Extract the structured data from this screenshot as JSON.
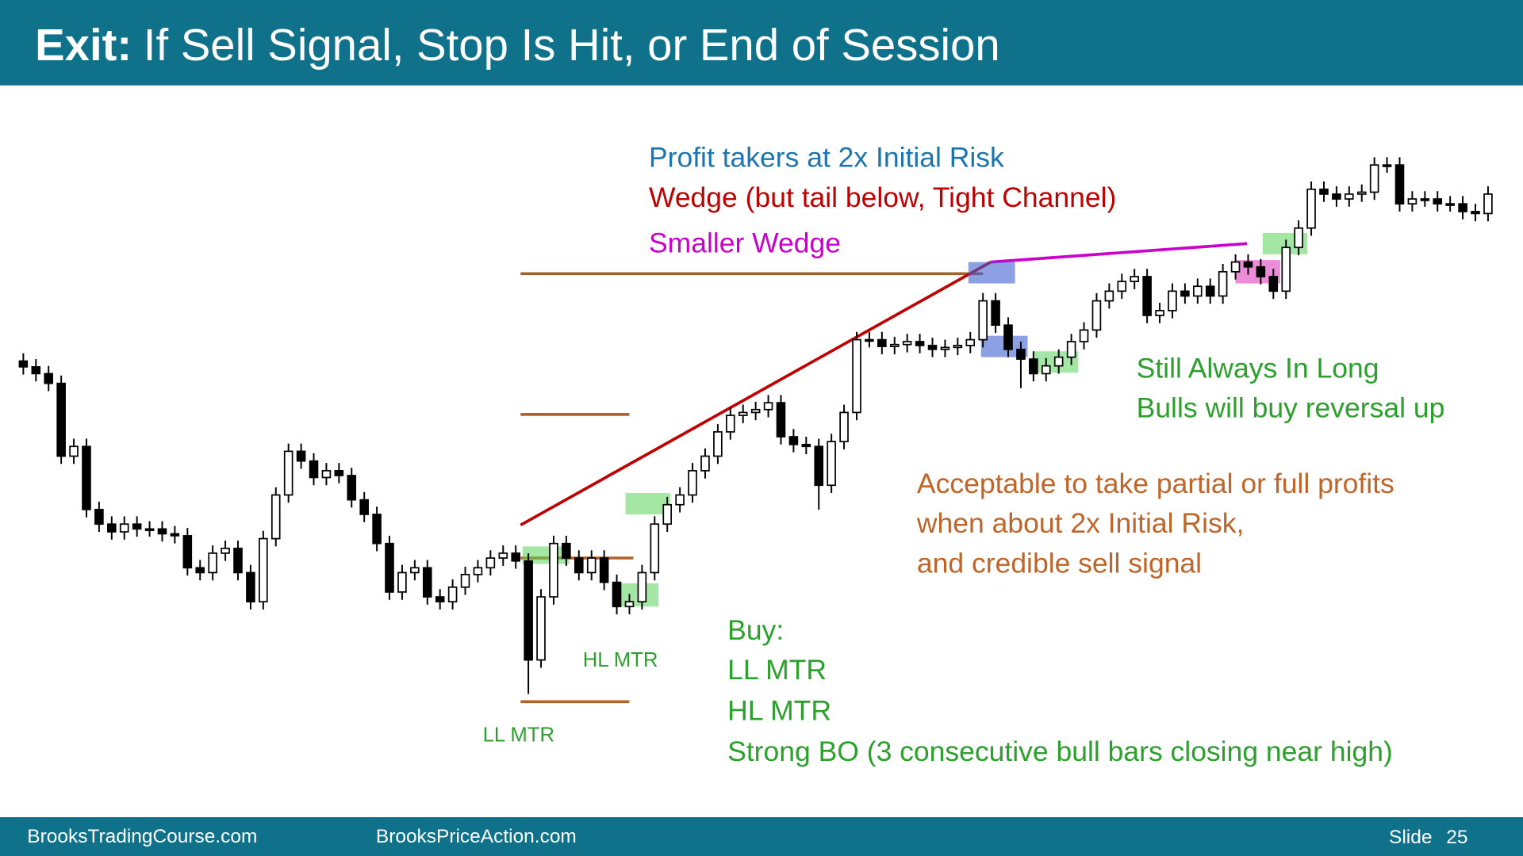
{
  "header": {
    "title_bold": "Exit:",
    "title": "If Sell Signal, Stop Is Hit, or End of Session"
  },
  "chart_data": {
    "type": "candlestick",
    "ylim": [
      118,
      1000
    ],
    "open": [
      628,
      622,
      615,
      605,
      530,
      540,
      475,
      460,
      452,
      460,
      455,
      455,
      450,
      448,
      415,
      410,
      430,
      435,
      410,
      380,
      445,
      490,
      535,
      525,
      508,
      515,
      510,
      485,
      470,
      440,
      390,
      410,
      415,
      385,
      380,
      395,
      408,
      415,
      425,
      430,
      422,
      320,
      385,
      440,
      425,
      410,
      425,
      400,
      375,
      380,
      410,
      460,
      480,
      490,
      515,
      530,
      555,
      572,
      575,
      578,
      585,
      550,
      542,
      540,
      500,
      545,
      575,
      650,
      650,
      643,
      645,
      648,
      644,
      640,
      642,
      644,
      650,
      690,
      665,
      640,
      630,
      615,
      623,
      632,
      648,
      660,
      690,
      700,
      710,
      715,
      675,
      680,
      700,
      695,
      705,
      695,
      720,
      730,
      725,
      715,
      700,
      745,
      765,
      805,
      800,
      795,
      800,
      802,
      830,
      830,
      790,
      795,
      795,
      790,
      790,
      782,
      780
    ],
    "high": [
      636,
      630,
      623,
      613,
      548,
      548,
      483,
      468,
      468,
      468,
      463,
      463,
      458,
      456,
      423,
      438,
      443,
      443,
      418,
      453,
      498,
      543,
      543,
      533,
      523,
      523,
      518,
      493,
      478,
      448,
      418,
      423,
      423,
      393,
      403,
      416,
      423,
      433,
      438,
      438,
      430,
      393,
      448,
      448,
      433,
      433,
      433,
      408,
      388,
      418,
      468,
      488,
      498,
      523,
      538,
      563,
      580,
      583,
      586,
      593,
      593,
      558,
      550,
      548,
      553,
      583,
      658,
      658,
      658,
      653,
      656,
      656,
      652,
      650,
      652,
      658,
      698,
      698,
      673,
      648,
      638,
      631,
      640,
      656,
      668,
      698,
      708,
      718,
      723,
      723,
      688,
      708,
      708,
      713,
      713,
      728,
      738,
      738,
      733,
      723,
      753,
      773,
      813,
      813,
      808,
      808,
      810,
      838,
      838,
      838,
      803,
      803,
      803,
      798,
      798,
      790,
      808
    ],
    "low": [
      614,
      607,
      597,
      522,
      522,
      467,
      452,
      444,
      444,
      447,
      447,
      442,
      440,
      407,
      402,
      402,
      422,
      402,
      372,
      372,
      437,
      482,
      517,
      500,
      500,
      502,
      477,
      462,
      432,
      382,
      382,
      402,
      377,
      372,
      372,
      387,
      400,
      407,
      417,
      414,
      285,
      312,
      377,
      417,
      402,
      402,
      392,
      367,
      367,
      372,
      402,
      452,
      472,
      482,
      507,
      522,
      547,
      564,
      567,
      570,
      542,
      534,
      532,
      475,
      492,
      537,
      567,
      642,
      635,
      635,
      637,
      636,
      632,
      632,
      634,
      636,
      642,
      657,
      632,
      600,
      607,
      607,
      615,
      624,
      640,
      652,
      682,
      692,
      702,
      667,
      667,
      672,
      687,
      687,
      687,
      687,
      712,
      717,
      707,
      692,
      692,
      737,
      757,
      792,
      787,
      787,
      792,
      794,
      822,
      782,
      782,
      787,
      782,
      782,
      774,
      772,
      772
    ],
    "close": [
      622,
      615,
      605,
      530,
      540,
      475,
      460,
      452,
      460,
      455,
      455,
      450,
      448,
      415,
      410,
      430,
      435,
      410,
      380,
      445,
      490,
      535,
      525,
      508,
      515,
      510,
      485,
      470,
      440,
      390,
      410,
      415,
      385,
      380,
      395,
      408,
      415,
      425,
      430,
      422,
      320,
      385,
      440,
      425,
      410,
      425,
      400,
      375,
      380,
      410,
      460,
      480,
      490,
      515,
      530,
      555,
      572,
      575,
      578,
      585,
      550,
      542,
      540,
      500,
      545,
      575,
      650,
      650,
      643,
      645,
      648,
      644,
      640,
      642,
      644,
      650,
      690,
      665,
      640,
      630,
      615,
      623,
      632,
      648,
      660,
      690,
      700,
      710,
      715,
      675,
      680,
      700,
      695,
      705,
      695,
      720,
      730,
      725,
      715,
      700,
      745,
      765,
      805,
      800,
      795,
      800,
      802,
      830,
      830,
      790,
      795,
      795,
      790,
      790,
      782,
      780,
      800
    ],
    "bull_color": "#ffffff",
    "bear_color": "#000000",
    "annotations": {
      "profit_takers": "Profit takers at 2x Initial Risk",
      "wedge": "Wedge (but tail below, Tight Channel)",
      "smaller_wedge": "Smaller Wedge",
      "always_in_1": "Still Always In Long",
      "always_in_2": "Bulls will buy reversal  up",
      "accept_1": "Acceptable to take partial or full profits",
      "accept_2": "when about 2x Initial Risk,",
      "accept_3": "and credible sell signal",
      "buy_1": "Buy:",
      "buy_2": "LL MTR",
      "buy_3": "HL MTR",
      "buy_4": "Strong BO (3 consecutive bull bars closing near high)",
      "hl_mtr": "HL MTR",
      "ll_mtr": "LL MTR"
    }
  },
  "footer": {
    "left": "BrooksTradingCourse.com",
    "center": "BrooksPriceAction.com",
    "slide_label": "Slide",
    "slide_number": "25"
  }
}
